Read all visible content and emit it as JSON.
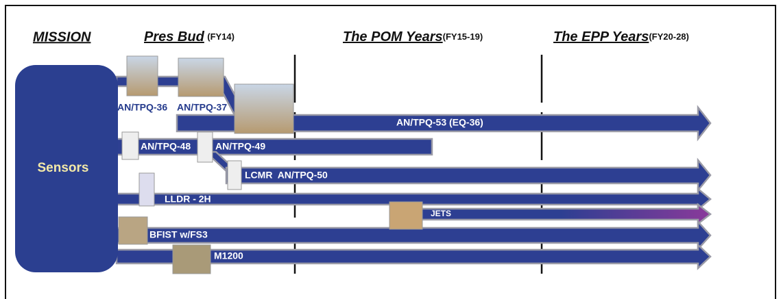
{
  "header": {
    "mission": "MISSION",
    "pres_bud": "Pres Bud",
    "pres_bud_fy": "(FY14)",
    "pom": "The POM Years",
    "pom_fy": "(FY15-19)",
    "epp": "The EPP Years",
    "epp_fy": "(FY20-28)"
  },
  "box": {
    "label": "Sensors"
  },
  "systems": [
    "AN/TPQ-36",
    "AN/TPQ-37",
    "AN/TPQ-53 (EQ-36)",
    "AN/TPQ-48",
    "AN/TPQ-49",
    "LCMR  AN/TPQ-50",
    "LLDR - 2H",
    "JETS",
    "BFIST w/FS3",
    "M1200"
  ]
}
